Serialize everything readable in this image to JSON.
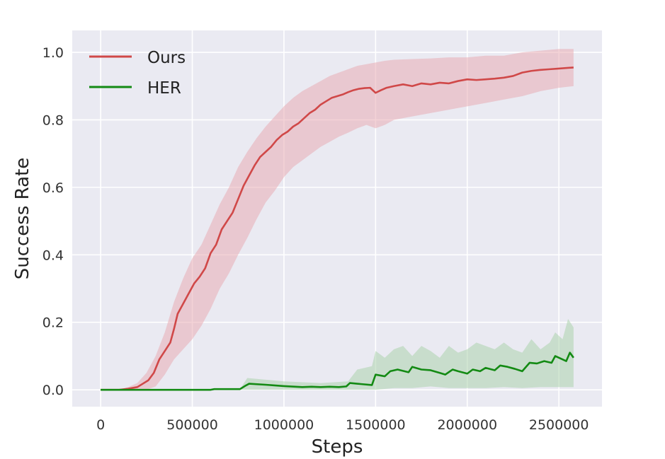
{
  "chart_data": {
    "type": "line",
    "title": "",
    "xlabel": "Steps",
    "ylabel": "Success Rate",
    "xlim": [
      -155000,
      2735000
    ],
    "ylim": [
      -0.05,
      1.065
    ],
    "xticks": [
      0,
      500000,
      1000000,
      1500000,
      2000000,
      2500000
    ],
    "xtick_labels": [
      "0",
      "500000",
      "1000000",
      "1500000",
      "2000000",
      "2500000"
    ],
    "yticks": [
      0.0,
      0.2,
      0.4,
      0.6,
      0.8,
      1.0
    ],
    "ytick_labels": [
      "0.0",
      "0.2",
      "0.4",
      "0.6",
      "0.8",
      "1.0"
    ],
    "grid": true,
    "legend_position": "top-left",
    "series": [
      {
        "name": "Ours",
        "color": "#d04848",
        "band_color": "#e8a5ae",
        "points": [
          [
            0,
            0.0
          ],
          [
            100000,
            0.0
          ],
          [
            150000,
            0.003
          ],
          [
            200000,
            0.008
          ],
          [
            230000,
            0.018
          ],
          [
            260000,
            0.028
          ],
          [
            290000,
            0.05
          ],
          [
            320000,
            0.09
          ],
          [
            350000,
            0.115
          ],
          [
            380000,
            0.14
          ],
          [
            400000,
            0.18
          ],
          [
            420000,
            0.225
          ],
          [
            450000,
            0.255
          ],
          [
            480000,
            0.285
          ],
          [
            510000,
            0.315
          ],
          [
            540000,
            0.335
          ],
          [
            570000,
            0.36
          ],
          [
            600000,
            0.405
          ],
          [
            630000,
            0.43
          ],
          [
            660000,
            0.475
          ],
          [
            690000,
            0.5
          ],
          [
            720000,
            0.525
          ],
          [
            750000,
            0.565
          ],
          [
            780000,
            0.605
          ],
          [
            810000,
            0.635
          ],
          [
            840000,
            0.665
          ],
          [
            870000,
            0.69
          ],
          [
            900000,
            0.705
          ],
          [
            930000,
            0.72
          ],
          [
            960000,
            0.74
          ],
          [
            990000,
            0.755
          ],
          [
            1020000,
            0.765
          ],
          [
            1050000,
            0.78
          ],
          [
            1080000,
            0.79
          ],
          [
            1110000,
            0.805
          ],
          [
            1140000,
            0.82
          ],
          [
            1170000,
            0.83
          ],
          [
            1200000,
            0.845
          ],
          [
            1230000,
            0.855
          ],
          [
            1260000,
            0.865
          ],
          [
            1290000,
            0.87
          ],
          [
            1320000,
            0.875
          ],
          [
            1350000,
            0.882
          ],
          [
            1380000,
            0.888
          ],
          [
            1410000,
            0.892
          ],
          [
            1440000,
            0.894
          ],
          [
            1470000,
            0.895
          ],
          [
            1500000,
            0.88
          ],
          [
            1530000,
            0.888
          ],
          [
            1560000,
            0.895
          ],
          [
            1600000,
            0.9
          ],
          [
            1650000,
            0.905
          ],
          [
            1700000,
            0.9
          ],
          [
            1750000,
            0.908
          ],
          [
            1800000,
            0.905
          ],
          [
            1850000,
            0.91
          ],
          [
            1900000,
            0.908
          ],
          [
            1950000,
            0.915
          ],
          [
            2000000,
            0.92
          ],
          [
            2050000,
            0.918
          ],
          [
            2100000,
            0.92
          ],
          [
            2150000,
            0.922
          ],
          [
            2200000,
            0.925
          ],
          [
            2250000,
            0.93
          ],
          [
            2300000,
            0.94
          ],
          [
            2350000,
            0.945
          ],
          [
            2400000,
            0.948
          ],
          [
            2450000,
            0.95
          ],
          [
            2500000,
            0.952
          ],
          [
            2550000,
            0.954
          ],
          [
            2580000,
            0.955
          ]
        ],
        "lower": [
          [
            0,
            0.0
          ],
          [
            100000,
            0.0
          ],
          [
            150000,
            0.0
          ],
          [
            200000,
            0.0
          ],
          [
            250000,
            0.0
          ],
          [
            300000,
            0.01
          ],
          [
            350000,
            0.045
          ],
          [
            400000,
            0.09
          ],
          [
            450000,
            0.12
          ],
          [
            500000,
            0.15
          ],
          [
            550000,
            0.19
          ],
          [
            600000,
            0.24
          ],
          [
            650000,
            0.3
          ],
          [
            700000,
            0.345
          ],
          [
            750000,
            0.4
          ],
          [
            800000,
            0.45
          ],
          [
            850000,
            0.505
          ],
          [
            900000,
            0.555
          ],
          [
            950000,
            0.59
          ],
          [
            1000000,
            0.63
          ],
          [
            1050000,
            0.66
          ],
          [
            1100000,
            0.68
          ],
          [
            1150000,
            0.7
          ],
          [
            1200000,
            0.72
          ],
          [
            1250000,
            0.735
          ],
          [
            1300000,
            0.75
          ],
          [
            1350000,
            0.762
          ],
          [
            1400000,
            0.775
          ],
          [
            1450000,
            0.785
          ],
          [
            1500000,
            0.775
          ],
          [
            1550000,
            0.785
          ],
          [
            1600000,
            0.8
          ],
          [
            1700000,
            0.81
          ],
          [
            1800000,
            0.82
          ],
          [
            1900000,
            0.83
          ],
          [
            2000000,
            0.84
          ],
          [
            2100000,
            0.85
          ],
          [
            2200000,
            0.86
          ],
          [
            2300000,
            0.87
          ],
          [
            2400000,
            0.885
          ],
          [
            2500000,
            0.895
          ],
          [
            2580000,
            0.9
          ]
        ],
        "upper": [
          [
            0,
            0.0
          ],
          [
            100000,
            0.0
          ],
          [
            150000,
            0.008
          ],
          [
            200000,
            0.02
          ],
          [
            250000,
            0.05
          ],
          [
            300000,
            0.1
          ],
          [
            350000,
            0.17
          ],
          [
            400000,
            0.26
          ],
          [
            450000,
            0.33
          ],
          [
            500000,
            0.39
          ],
          [
            550000,
            0.43
          ],
          [
            600000,
            0.49
          ],
          [
            650000,
            0.55
          ],
          [
            700000,
            0.6
          ],
          [
            750000,
            0.66
          ],
          [
            800000,
            0.705
          ],
          [
            850000,
            0.745
          ],
          [
            900000,
            0.78
          ],
          [
            950000,
            0.81
          ],
          [
            1000000,
            0.84
          ],
          [
            1050000,
            0.865
          ],
          [
            1100000,
            0.885
          ],
          [
            1150000,
            0.9
          ],
          [
            1200000,
            0.915
          ],
          [
            1250000,
            0.93
          ],
          [
            1300000,
            0.94
          ],
          [
            1350000,
            0.95
          ],
          [
            1400000,
            0.96
          ],
          [
            1450000,
            0.965
          ],
          [
            1500000,
            0.97
          ],
          [
            1550000,
            0.975
          ],
          [
            1600000,
            0.978
          ],
          [
            1700000,
            0.98
          ],
          [
            1800000,
            0.982
          ],
          [
            1900000,
            0.985
          ],
          [
            2000000,
            0.985
          ],
          [
            2100000,
            0.99
          ],
          [
            2200000,
            0.99
          ],
          [
            2300000,
            1.0
          ],
          [
            2400000,
            1.005
          ],
          [
            2500000,
            1.01
          ],
          [
            2580000,
            1.01
          ]
        ]
      },
      {
        "name": "HER",
        "color": "#138a13",
        "band_color": "#a5cfa5",
        "points": [
          [
            0,
            0.0
          ],
          [
            200000,
            0.0
          ],
          [
            400000,
            0.0
          ],
          [
            600000,
            0.0
          ],
          [
            620000,
            0.002
          ],
          [
            760000,
            0.002
          ],
          [
            790000,
            0.012
          ],
          [
            810000,
            0.018
          ],
          [
            900000,
            0.015
          ],
          [
            1000000,
            0.011
          ],
          [
            1100000,
            0.008
          ],
          [
            1150000,
            0.009
          ],
          [
            1200000,
            0.008
          ],
          [
            1250000,
            0.009
          ],
          [
            1300000,
            0.008
          ],
          [
            1340000,
            0.01
          ],
          [
            1360000,
            0.02
          ],
          [
            1400000,
            0.018
          ],
          [
            1480000,
            0.014
          ],
          [
            1500000,
            0.045
          ],
          [
            1550000,
            0.04
          ],
          [
            1580000,
            0.055
          ],
          [
            1620000,
            0.06
          ],
          [
            1680000,
            0.052
          ],
          [
            1700000,
            0.068
          ],
          [
            1750000,
            0.06
          ],
          [
            1800000,
            0.058
          ],
          [
            1850000,
            0.05
          ],
          [
            1880000,
            0.045
          ],
          [
            1920000,
            0.06
          ],
          [
            1950000,
            0.055
          ],
          [
            2000000,
            0.048
          ],
          [
            2030000,
            0.06
          ],
          [
            2070000,
            0.055
          ],
          [
            2100000,
            0.065
          ],
          [
            2150000,
            0.058
          ],
          [
            2180000,
            0.072
          ],
          [
            2220000,
            0.068
          ],
          [
            2260000,
            0.062
          ],
          [
            2300000,
            0.055
          ],
          [
            2340000,
            0.08
          ],
          [
            2380000,
            0.078
          ],
          [
            2420000,
            0.085
          ],
          [
            2460000,
            0.08
          ],
          [
            2480000,
            0.1
          ],
          [
            2520000,
            0.09
          ],
          [
            2540000,
            0.085
          ],
          [
            2560000,
            0.11
          ],
          [
            2580000,
            0.095
          ]
        ],
        "lower": [
          [
            0,
            0.0
          ],
          [
            790000,
            0.0
          ],
          [
            1000000,
            0.0
          ],
          [
            1500000,
            0.0
          ],
          [
            1600000,
            0.005
          ],
          [
            1700000,
            0.005
          ],
          [
            1800000,
            0.01
          ],
          [
            1900000,
            0.005
          ],
          [
            2000000,
            0.005
          ],
          [
            2100000,
            0.005
          ],
          [
            2200000,
            0.008
          ],
          [
            2300000,
            0.005
          ],
          [
            2400000,
            0.008
          ],
          [
            2500000,
            0.008
          ],
          [
            2580000,
            0.008
          ]
        ],
        "upper": [
          [
            0,
            0.0
          ],
          [
            760000,
            0.002
          ],
          [
            800000,
            0.035
          ],
          [
            900000,
            0.03
          ],
          [
            1000000,
            0.025
          ],
          [
            1200000,
            0.02
          ],
          [
            1350000,
            0.025
          ],
          [
            1400000,
            0.06
          ],
          [
            1480000,
            0.07
          ],
          [
            1500000,
            0.115
          ],
          [
            1550000,
            0.095
          ],
          [
            1600000,
            0.12
          ],
          [
            1650000,
            0.13
          ],
          [
            1700000,
            0.1
          ],
          [
            1750000,
            0.13
          ],
          [
            1800000,
            0.115
          ],
          [
            1850000,
            0.095
          ],
          [
            1900000,
            0.13
          ],
          [
            1950000,
            0.11
          ],
          [
            2000000,
            0.12
          ],
          [
            2050000,
            0.14
          ],
          [
            2100000,
            0.13
          ],
          [
            2150000,
            0.12
          ],
          [
            2200000,
            0.14
          ],
          [
            2250000,
            0.12
          ],
          [
            2300000,
            0.11
          ],
          [
            2350000,
            0.15
          ],
          [
            2400000,
            0.12
          ],
          [
            2450000,
            0.14
          ],
          [
            2480000,
            0.17
          ],
          [
            2520000,
            0.15
          ],
          [
            2550000,
            0.21
          ],
          [
            2580000,
            0.185
          ]
        ]
      }
    ]
  }
}
